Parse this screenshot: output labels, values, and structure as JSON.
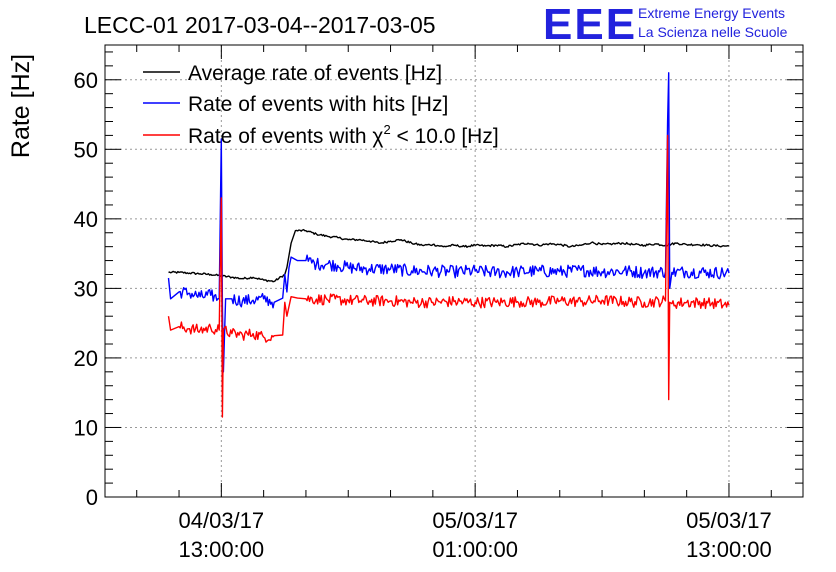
{
  "header": {
    "title": "LECC-01 2017-03-04--2017-03-05",
    "logo_text": "EEE",
    "org_line1": "Extreme Energy Events",
    "org_line2": "La Scienza nelle Scuole"
  },
  "colors": {
    "average": "#000000",
    "hits": "#0000ff",
    "chi2": "#ff0000",
    "logo": "#2222dd",
    "grid": "#999999"
  },
  "legend": {
    "average": "Average rate of events [Hz]",
    "hits": "Rate of events with hits [Hz]",
    "chi2_prefix": "Rate of events with χ",
    "chi2_sup": "2",
    "chi2_suffix": " < 10.0 [Hz]"
  },
  "chart_data": {
    "type": "line",
    "title": "LECC-01 2017-03-04--2017-03-05",
    "ylabel": "Rate [Hz]",
    "xlabel": "",
    "ylim": [
      0,
      65
    ],
    "xlim_hours": [
      -5.5,
      27.5
    ],
    "grid": true,
    "legend_position": "top-left",
    "y_ticks": [
      0,
      10,
      20,
      30,
      40,
      50,
      60
    ],
    "y_tick_labels": [
      "0",
      "10",
      "20",
      "30",
      "40",
      "50",
      "60"
    ],
    "x_ticks": [
      {
        "hour": 0,
        "date": "04/03/17",
        "time": "13:00:00"
      },
      {
        "hour": 12,
        "date": "05/03/17",
        "time": "01:00:00"
      },
      {
        "hour": 24,
        "date": "05/03/17",
        "time": "13:00:00"
      }
    ],
    "x_unit_note": "hours relative to 2017-03-04 13:00:00",
    "series": [
      {
        "name": "Average rate of events [Hz]",
        "key": "average",
        "points": [
          [
            -2.5,
            32.3
          ],
          [
            -2.0,
            32.3
          ],
          [
            -1.5,
            32.2
          ],
          [
            -1.0,
            32.1
          ],
          [
            -0.5,
            32.0
          ],
          [
            0.0,
            31.8
          ],
          [
            0.5,
            31.6
          ],
          [
            1.0,
            31.4
          ],
          [
            1.5,
            31.6
          ],
          [
            2.0,
            31.2
          ],
          [
            2.5,
            31.0
          ],
          [
            3.0,
            32.0
          ],
          [
            3.1,
            33.0
          ],
          [
            3.3,
            36.5
          ],
          [
            3.5,
            38.3
          ],
          [
            4.0,
            38.3
          ],
          [
            4.5,
            37.8
          ],
          [
            5.0,
            37.5
          ],
          [
            5.5,
            37.3
          ],
          [
            6.0,
            37.0
          ],
          [
            6.5,
            37.0
          ],
          [
            7.0,
            36.8
          ],
          [
            7.5,
            36.5
          ],
          [
            8.0,
            36.8
          ],
          [
            8.5,
            37.0
          ],
          [
            9.0,
            36.5
          ],
          [
            9.5,
            36.2
          ],
          [
            10.0,
            36.3
          ],
          [
            10.5,
            36.0
          ],
          [
            11.0,
            36.2
          ],
          [
            11.5,
            36.0
          ],
          [
            12.0,
            36.2
          ],
          [
            12.5,
            36.1
          ],
          [
            13.0,
            36.2
          ],
          [
            13.5,
            36.0
          ],
          [
            14.0,
            36.3
          ],
          [
            14.5,
            36.5
          ],
          [
            15.0,
            36.2
          ],
          [
            15.5,
            36.4
          ],
          [
            16.0,
            36.3
          ],
          [
            16.5,
            36.0
          ],
          [
            17.0,
            36.2
          ],
          [
            17.5,
            36.6
          ],
          [
            18.0,
            36.3
          ],
          [
            18.5,
            36.4
          ],
          [
            19.0,
            36.5
          ],
          [
            19.5,
            36.3
          ],
          [
            20.0,
            36.2
          ],
          [
            20.5,
            36.4
          ],
          [
            21.0,
            36.2
          ],
          [
            21.5,
            36.5
          ],
          [
            22.0,
            36.3
          ],
          [
            22.5,
            36.3
          ],
          [
            23.0,
            36.2
          ],
          [
            23.5,
            36.1
          ],
          [
            24.0,
            36.1
          ]
        ]
      },
      {
        "name": "Rate of events with hits [Hz]",
        "key": "hits",
        "points": [
          [
            -2.5,
            31.5
          ],
          [
            -2.4,
            28.5
          ],
          [
            -2.0,
            29.5
          ],
          [
            -1.5,
            29.3
          ],
          [
            -1.0,
            28.8
          ],
          [
            -0.5,
            29.0
          ],
          [
            -0.1,
            28.5
          ],
          [
            0.0,
            51.5
          ],
          [
            0.05,
            27.5
          ],
          [
            0.1,
            18.0
          ],
          [
            0.2,
            28.5
          ],
          [
            0.5,
            28.5
          ],
          [
            1.0,
            28.2
          ],
          [
            1.5,
            28.3
          ],
          [
            2.0,
            28.5
          ],
          [
            2.5,
            28.0
          ],
          [
            2.9,
            28.6
          ],
          [
            3.0,
            32.0
          ],
          [
            3.1,
            29.5
          ],
          [
            3.2,
            33.0
          ],
          [
            3.3,
            34.5
          ],
          [
            3.6,
            34.0
          ],
          [
            4.0,
            34.0
          ],
          [
            4.5,
            33.5
          ],
          [
            5.0,
            33.5
          ],
          [
            5.5,
            33.3
          ],
          [
            6.0,
            33.0
          ],
          [
            7.0,
            32.8
          ],
          [
            8.0,
            32.8
          ],
          [
            9.0,
            32.5
          ],
          [
            10.0,
            32.5
          ],
          [
            11.0,
            32.4
          ],
          [
            12.0,
            32.5
          ],
          [
            13.0,
            32.3
          ],
          [
            14.0,
            32.4
          ],
          [
            15.0,
            32.5
          ],
          [
            16.0,
            32.4
          ],
          [
            17.0,
            32.6
          ],
          [
            18.0,
            32.4
          ],
          [
            19.0,
            32.5
          ],
          [
            20.0,
            32.3
          ],
          [
            21.0,
            32.4
          ],
          [
            21.1,
            54.0
          ],
          [
            21.15,
            61.0
          ],
          [
            21.2,
            30.0
          ],
          [
            21.3,
            32.3
          ],
          [
            22.0,
            32.4
          ],
          [
            23.0,
            32.3
          ],
          [
            24.0,
            32.2
          ]
        ]
      },
      {
        "name": "Rate of events with χ2 < 10.0 [Hz]",
        "key": "chi2",
        "points": [
          [
            -2.5,
            26.0
          ],
          [
            -2.4,
            24.0
          ],
          [
            -2.0,
            24.5
          ],
          [
            -1.5,
            24.2
          ],
          [
            -1.0,
            24.0
          ],
          [
            -0.5,
            24.3
          ],
          [
            -0.1,
            24.0
          ],
          [
            0.0,
            43.0
          ],
          [
            0.05,
            11.5
          ],
          [
            0.1,
            24.0
          ],
          [
            0.5,
            23.5
          ],
          [
            1.0,
            23.3
          ],
          [
            1.5,
            23.5
          ],
          [
            2.0,
            23.0
          ],
          [
            2.5,
            23.2
          ],
          [
            2.9,
            23.3
          ],
          [
            3.0,
            28.0
          ],
          [
            3.1,
            26.0
          ],
          [
            3.3,
            28.8
          ],
          [
            3.6,
            28.6
          ],
          [
            4.0,
            28.5
          ],
          [
            5.0,
            28.4
          ],
          [
            6.0,
            28.3
          ],
          [
            7.0,
            28.2
          ],
          [
            8.0,
            28.2
          ],
          [
            9.0,
            28.0
          ],
          [
            10.0,
            28.0
          ],
          [
            11.0,
            28.1
          ],
          [
            12.0,
            28.0
          ],
          [
            13.0,
            28.0
          ],
          [
            14.0,
            28.1
          ],
          [
            15.0,
            28.0
          ],
          [
            16.0,
            28.2
          ],
          [
            17.0,
            28.1
          ],
          [
            18.0,
            28.3
          ],
          [
            19.0,
            28.1
          ],
          [
            20.0,
            28.0
          ],
          [
            21.0,
            28.2
          ],
          [
            21.1,
            52.0
          ],
          [
            21.15,
            14.0
          ],
          [
            21.2,
            28.0
          ],
          [
            21.3,
            27.8
          ],
          [
            22.0,
            28.0
          ],
          [
            23.0,
            27.9
          ],
          [
            24.0,
            27.6
          ]
        ]
      }
    ]
  }
}
